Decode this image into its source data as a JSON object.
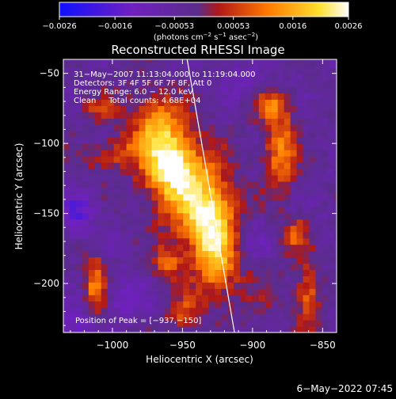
{
  "chart_data": {
    "type": "heatmap",
    "title": "Reconstructed RHESSI Image",
    "xlabel": "Heliocentric X (arcsec)",
    "ylabel": "Heliocentric Y (arcsec)",
    "xlim": [
      -1035,
      -840
    ],
    "ylim": [
      -235,
      -40
    ],
    "x_ticks": [
      -1000,
      -950,
      -900,
      -850
    ],
    "y_ticks": [
      -50,
      -100,
      -150,
      -200
    ],
    "x_tick_labels": [
      "−1000",
      "−950",
      "−900",
      "−850"
    ],
    "y_tick_labels": [
      "−50",
      "−100",
      "−150",
      "−200"
    ],
    "colorbar": {
      "range": [
        -0.0026,
        0.0026
      ],
      "ticks": [
        -0.0026,
        -0.0016,
        -0.00053,
        0.00053,
        0.0016,
        0.0026
      ],
      "tick_labels": [
        "−0.0026",
        "−0.0016",
        "−0.00053",
        "0.00053",
        "0.0016",
        "0.0026"
      ],
      "units_parts": [
        "(photons cm",
        "−2",
        " s",
        "−1",
        " asec",
        "−2",
        ")"
      ],
      "colors": [
        "#1010ff",
        "#7020c0",
        "#5a2c8a",
        "#b01818",
        "#ff7a00",
        "#ffe030",
        "#ffffff"
      ]
    },
    "annotations": [
      "31−May−2007 11:13:04.000 to 11:19:04.000",
      "Detectors: 3F 4F 5F 6F 7F 8F, Att 0",
      "Energy Range: 6.0 − 12.0 keV",
      "Clean     Total counts: 4.68E+04"
    ],
    "peak_label": "Position of Peak = [−937,−150]",
    "peak": [
      -937,
      -150
    ],
    "limb_line": [
      [
        -947,
        -38
      ],
      [
        -912,
        -240
      ]
    ],
    "sources": [
      {
        "x": -940,
        "y": -140,
        "sx": 18,
        "sy": 42,
        "amp": 0.0024,
        "rot": -30
      },
      {
        "x": -960,
        "y": -113,
        "sx": 12,
        "sy": 15,
        "amp": 0.0016,
        "rot": 0
      },
      {
        "x": -968,
        "y": -83,
        "sx": 10,
        "sy": 12,
        "amp": 0.0012,
        "rot": 0
      },
      {
        "x": -1000,
        "y": -108,
        "sx": 14,
        "sy": 8,
        "amp": 0.001,
        "rot": -20
      },
      {
        "x": -880,
        "y": -105,
        "sx": 8,
        "sy": 18,
        "amp": 0.0018,
        "rot": 0
      },
      {
        "x": -888,
        "y": -72,
        "sx": 10,
        "sy": 8,
        "amp": 0.0012,
        "rot": 0
      },
      {
        "x": -1012,
        "y": -200,
        "sx": 5,
        "sy": 14,
        "amp": 0.0017,
        "rot": 0
      },
      {
        "x": -960,
        "y": -185,
        "sx": 7,
        "sy": 8,
        "amp": 0.0013,
        "rot": 0
      },
      {
        "x": -928,
        "y": -175,
        "sx": 10,
        "sy": 24,
        "amp": 0.0014,
        "rot": 0
      },
      {
        "x": -950,
        "y": -220,
        "sx": 8,
        "sy": 8,
        "amp": 0.0011,
        "rot": 0
      },
      {
        "x": -860,
        "y": -210,
        "sx": 6,
        "sy": 16,
        "amp": 0.0014,
        "rot": 0
      },
      {
        "x": -870,
        "y": -165,
        "sx": 7,
        "sy": 9,
        "amp": 0.0012,
        "rot": 0
      },
      {
        "x": -1010,
        "y": -75,
        "sx": 8,
        "sy": 6,
        "amp": 0.0009,
        "rot": 0
      },
      {
        "x": -1025,
        "y": -150,
        "sx": 9,
        "sy": 10,
        "amp": -0.0012,
        "rot": 0
      },
      {
        "x": -905,
        "y": -170,
        "sx": 12,
        "sy": 14,
        "amp": -0.0011,
        "rot": 0
      },
      {
        "x": -990,
        "y": -210,
        "sx": 9,
        "sy": 9,
        "amp": -0.0009,
        "rot": 0
      },
      {
        "x": -1025,
        "y": -230,
        "sx": 9,
        "sy": 9,
        "amp": -0.0008,
        "rot": 0
      },
      {
        "x": -905,
        "y": -55,
        "sx": 10,
        "sy": 8,
        "amp": -0.0007,
        "rot": 0
      }
    ]
  },
  "footer": {
    "date": "6−May−2022 07:45"
  }
}
